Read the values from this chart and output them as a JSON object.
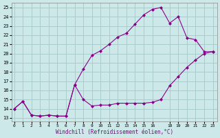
{
  "xlabel": "Windchill (Refroidissement éolien,°C)",
  "background_color": "#cce8e8",
  "grid_color": "#aacccc",
  "line_color": "#8b008b",
  "x_ticks": [
    0,
    1,
    2,
    3,
    4,
    5,
    6,
    7,
    8,
    9,
    10,
    11,
    12,
    13,
    14,
    15,
    16,
    18,
    19,
    20,
    21,
    22,
    23
  ],
  "y_ticks": [
    13,
    14,
    15,
    16,
    17,
    18,
    19,
    20,
    21,
    22,
    23,
    24,
    25
  ],
  "xlim": [
    -0.3,
    23.5
  ],
  "ylim": [
    12.6,
    25.5
  ],
  "line1_x": [
    0,
    1,
    2,
    3,
    4,
    5,
    6,
    7,
    8,
    9,
    10,
    11,
    12,
    13,
    14,
    15,
    16,
    17,
    18,
    19,
    20,
    21,
    22,
    23
  ],
  "line1_y": [
    14.0,
    14.8,
    13.3,
    13.2,
    13.3,
    13.2,
    13.2,
    16.6,
    15.0,
    14.3,
    14.4,
    14.4,
    14.6,
    14.6,
    14.6,
    14.6,
    14.7,
    15.0,
    16.5,
    17.5,
    18.5,
    19.3,
    20.0,
    20.2
  ],
  "line2_x": [
    0,
    1,
    2,
    3,
    4,
    5,
    6,
    7,
    8,
    9,
    10,
    11,
    12,
    13,
    14,
    15,
    16,
    17,
    18,
    19,
    20,
    21,
    22,
    23
  ],
  "line2_y": [
    14.0,
    14.8,
    13.3,
    13.2,
    13.3,
    13.2,
    13.2,
    16.6,
    18.3,
    19.8,
    20.3,
    21.0,
    21.8,
    22.2,
    23.2,
    24.2,
    24.8,
    25.0,
    23.3,
    24.0,
    21.7,
    21.5,
    20.2,
    20.2
  ]
}
